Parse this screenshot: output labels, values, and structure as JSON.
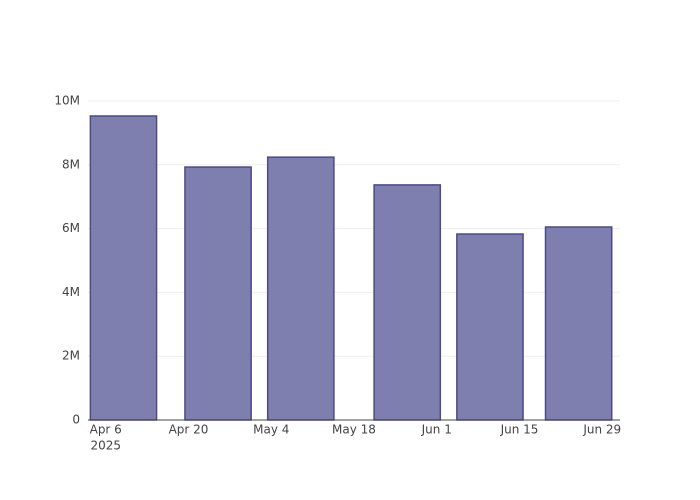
{
  "chart_data": {
    "type": "bar",
    "x": [
      "2025-04-09",
      "2025-04-25",
      "2025-05-09",
      "2025-05-27",
      "2025-06-10",
      "2025-06-25"
    ],
    "values": [
      9530000,
      7930000,
      8240000,
      7370000,
      5830000,
      6050000
    ],
    "color": "#7f7faf",
    "line_color": "#4b4b87",
    "xlim": [
      "2025-04-03",
      "2025-07-02"
    ],
    "xticks": [
      {
        "value": "2025-04-06",
        "label": "Apr 6"
      },
      {
        "value": "2025-04-20",
        "label": "Apr 20"
      },
      {
        "value": "2025-05-04",
        "label": "May 4"
      },
      {
        "value": "2025-05-18",
        "label": "May 18"
      },
      {
        "value": "2025-06-01",
        "label": "Jun 1"
      },
      {
        "value": "2025-06-15",
        "label": "Jun 15"
      },
      {
        "value": "2025-06-29",
        "label": "Jun 29"
      }
    ],
    "x_year": "2025",
    "ylim": [
      0,
      10000000
    ],
    "yticks": [
      0,
      {
        "value": 2000000,
        "label": "2M"
      },
      {
        "value": 4000000,
        "label": "4M"
      },
      {
        "value": 6000000,
        "label": "6M"
      },
      {
        "value": 8000000,
        "label": "8M"
      },
      {
        "value": 10000000,
        "label": "10M"
      }
    ],
    "grid": true
  }
}
